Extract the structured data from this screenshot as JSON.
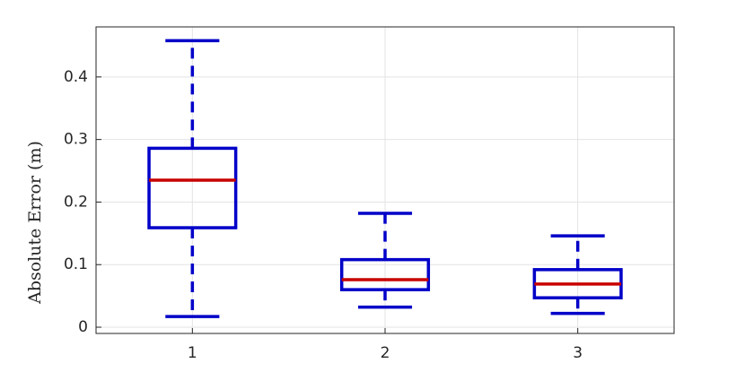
{
  "chart_data": {
    "type": "box",
    "y_label": "Absolute Error (m)",
    "categories": [
      "1",
      "2",
      "3"
    ],
    "whishi": [
      0.458,
      0.182,
      0.146
    ],
    "q3": [
      0.286,
      0.108,
      0.092
    ],
    "median": [
      0.235,
      0.076,
      0.069
    ],
    "q1": [
      0.159,
      0.06,
      0.047
    ],
    "whislo": [
      0.017,
      0.032,
      0.022
    ],
    "box_color": "#0000c8",
    "median_color": "#c80000",
    "ylim": [
      -0.01,
      0.48
    ],
    "yticks": [
      0,
      0.1,
      0.2,
      0.3,
      0.4
    ],
    "grid": true
  }
}
